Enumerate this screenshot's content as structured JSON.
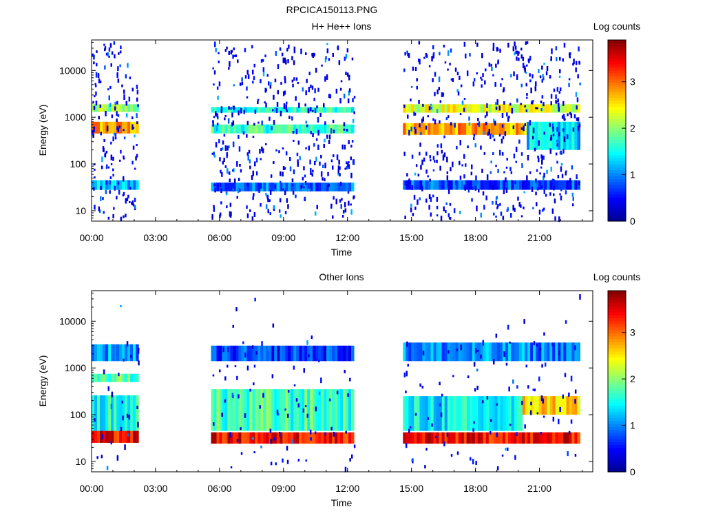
{
  "figure_title": "RPCICA150113.PNG",
  "colors": {
    "colormap": [
      "#00008f",
      "#0000ff",
      "#0080ff",
      "#00ffff",
      "#80ff80",
      "#ffff00",
      "#ff8000",
      "#ff0000",
      "#800000"
    ]
  },
  "chart_data": [
    {
      "type": "heatmap",
      "title": "H+ He++ Ions",
      "xlabel": "Time",
      "ylabel": "Energy (eV)",
      "x_scale": "time-of-day",
      "x_range_hours": [
        0,
        23.5
      ],
      "x_ticks": [
        "00:00",
        "03:00",
        "06:00",
        "09:00",
        "12:00",
        "15:00",
        "18:00",
        "21:00"
      ],
      "y_scale": "log",
      "ylim": [
        6,
        45000
      ],
      "y_ticks": [
        "10",
        "100",
        "1000",
        "10000"
      ],
      "colorbar": {
        "label": "Log counts",
        "range": [
          0,
          3.9
        ],
        "ticks": [
          "0",
          "1",
          "2",
          "3"
        ]
      },
      "data_gaps_hours": [
        [
          2.2,
          5.6
        ],
        [
          12.3,
          14.6
        ]
      ],
      "bands": [
        {
          "t": [
            0,
            2.2
          ],
          "e": [
            1300,
            1900
          ],
          "log_counts": 2.0
        },
        {
          "t": [
            0,
            2.2
          ],
          "e": [
            450,
            800
          ],
          "log_counts": 2.8
        },
        {
          "t": [
            0,
            2.2
          ],
          "e": [
            28,
            45
          ],
          "log_counts": 1.2
        },
        {
          "t": [
            5.6,
            12.3
          ],
          "e": [
            1250,
            1650
          ],
          "log_counts": 1.6
        },
        {
          "t": [
            5.6,
            12.3
          ],
          "e": [
            450,
            700
          ],
          "log_counts": 1.7
        },
        {
          "t": [
            5.6,
            12.3
          ],
          "e": [
            26,
            40
          ],
          "log_counts": 0.9
        },
        {
          "t": [
            14.6,
            22.9
          ],
          "e": [
            1250,
            1900
          ],
          "log_counts": 2.3
        },
        {
          "t": [
            14.6,
            20.4
          ],
          "e": [
            420,
            750
          ],
          "log_counts": 2.8
        },
        {
          "t": [
            20.4,
            22.9
          ],
          "e": [
            200,
            800
          ],
          "log_counts": 1.3
        },
        {
          "t": [
            14.6,
            22.9
          ],
          "e": [
            28,
            45
          ],
          "log_counts": 0.8
        }
      ]
    },
    {
      "type": "heatmap",
      "title": "Other Ions",
      "xlabel": "Time",
      "ylabel": "Energy (eV)",
      "x_scale": "time-of-day",
      "x_range_hours": [
        0,
        23.5
      ],
      "x_ticks": [
        "00:00",
        "03:00",
        "06:00",
        "09:00",
        "12:00",
        "15:00",
        "18:00",
        "21:00"
      ],
      "y_scale": "log",
      "ylim": [
        6,
        45000
      ],
      "y_ticks": [
        "10",
        "100",
        "1000",
        "10000"
      ],
      "colorbar": {
        "label": "Log counts",
        "range": [
          0,
          3.9
        ],
        "ticks": [
          "0",
          "1",
          "2",
          "3"
        ]
      },
      "data_gaps_hours": [
        [
          2.2,
          5.6
        ],
        [
          12.3,
          14.6
        ]
      ],
      "bands": [
        {
          "t": [
            0,
            2.2
          ],
          "e": [
            1400,
            3200
          ],
          "log_counts": 1.1
        },
        {
          "t": [
            0,
            2.2
          ],
          "e": [
            500,
            750
          ],
          "log_counts": 1.8
        },
        {
          "t": [
            0,
            2.2
          ],
          "e": [
            45,
            260
          ],
          "log_counts": 1.5
        },
        {
          "t": [
            0,
            2.2
          ],
          "e": [
            25,
            45
          ],
          "log_counts": 3.4
        },
        {
          "t": [
            5.6,
            12.3
          ],
          "e": [
            1400,
            3000
          ],
          "log_counts": 0.7
        },
        {
          "t": [
            5.6,
            12.3
          ],
          "e": [
            45,
            350
          ],
          "log_counts": 1.7
        },
        {
          "t": [
            5.6,
            12.3
          ],
          "e": [
            24,
            42
          ],
          "log_counts": 3.4
        },
        {
          "t": [
            14.6,
            22.9
          ],
          "e": [
            1400,
            3500
          ],
          "log_counts": 1.0
        },
        {
          "t": [
            14.6,
            20.2
          ],
          "e": [
            45,
            250
          ],
          "log_counts": 1.4
        },
        {
          "t": [
            20.2,
            22.9
          ],
          "e": [
            100,
            250
          ],
          "log_counts": 2.6
        },
        {
          "t": [
            14.6,
            22.9
          ],
          "e": [
            24,
            42
          ],
          "log_counts": 3.4
        }
      ]
    }
  ]
}
